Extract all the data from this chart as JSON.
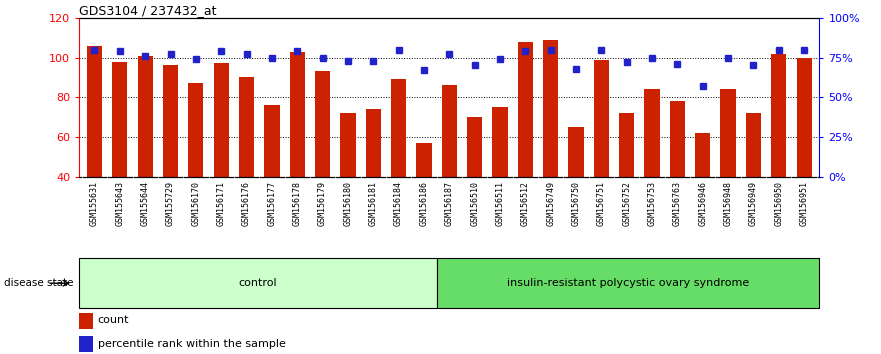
{
  "title": "GDS3104 / 237432_at",
  "samples": [
    "GSM155631",
    "GSM155643",
    "GSM155644",
    "GSM155729",
    "GSM156170",
    "GSM156171",
    "GSM156176",
    "GSM156177",
    "GSM156178",
    "GSM156179",
    "GSM156180",
    "GSM156181",
    "GSM156184",
    "GSM156186",
    "GSM156187",
    "GSM156510",
    "GSM156511",
    "GSM156512",
    "GSM156749",
    "GSM156750",
    "GSM156751",
    "GSM156752",
    "GSM156753",
    "GSM156763",
    "GSM156946",
    "GSM156948",
    "GSM156949",
    "GSM156950",
    "GSM156951"
  ],
  "counts": [
    106,
    98,
    101,
    96,
    87,
    97,
    90,
    76,
    103,
    93,
    72,
    74,
    89,
    57,
    86,
    70,
    75,
    108,
    109,
    65,
    99,
    72,
    84,
    78,
    62,
    84,
    72,
    102,
    100
  ],
  "percentile_ranks": [
    80,
    79,
    76,
    77,
    74,
    79,
    77,
    75,
    79,
    75,
    73,
    73,
    80,
    67,
    77,
    70,
    74,
    79,
    80,
    68,
    80,
    72,
    75,
    71,
    57,
    75,
    70,
    80,
    80
  ],
  "control_count": 14,
  "disease_count": 15,
  "ylim_left": [
    40,
    120
  ],
  "ylim_right": [
    0,
    100
  ],
  "yticks_left": [
    40,
    60,
    80,
    100,
    120
  ],
  "yticks_right": [
    0,
    25,
    50,
    75,
    100
  ],
  "ytick_labels_right": [
    "0%",
    "25%",
    "50%",
    "75%",
    "100%"
  ],
  "bar_color": "#cc2200",
  "dot_color": "#2222cc",
  "bg_color": "#ffffff",
  "control_label": "control",
  "disease_label": "insulin-resistant polycystic ovary syndrome",
  "control_bg": "#ccffcc",
  "disease_bg": "#66dd66",
  "xticklabel_bg": "#dddddd",
  "disease_state_label": "disease state"
}
